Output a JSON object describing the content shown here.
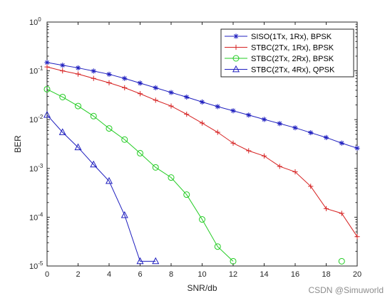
{
  "chart_data": {
    "type": "line",
    "title": "",
    "xlabel": "SNR/db",
    "ylabel": "BER",
    "xlim": [
      0,
      20
    ],
    "ylim": [
      1e-05,
      1
    ],
    "y_scale": "log",
    "grid": false,
    "legend_position": "top-right",
    "x_ticks": [
      0,
      2,
      4,
      6,
      8,
      10,
      12,
      14,
      16,
      18,
      20
    ],
    "y_ticks": [
      {
        "value": 1,
        "base": "10",
        "exp": "0"
      },
      {
        "value": 0.1,
        "base": "10",
        "exp": "-1"
      },
      {
        "value": 0.01,
        "base": "10",
        "exp": "-2"
      },
      {
        "value": 0.001,
        "base": "10",
        "exp": "-3"
      },
      {
        "value": 0.0001,
        "base": "10",
        "exp": "-4"
      },
      {
        "value": 1e-05,
        "base": "10",
        "exp": "-5"
      }
    ],
    "series": [
      {
        "name": "SISO(1Tx, 1Rx), BPSK",
        "color": "#1f1fbf",
        "marker": "asterisk",
        "x": [
          0,
          1,
          2,
          3,
          4,
          5,
          6,
          7,
          8,
          9,
          10,
          11,
          12,
          13,
          14,
          15,
          16,
          17,
          18,
          19,
          20
        ],
        "y": [
          0.148,
          0.13,
          0.115,
          0.099,
          0.085,
          0.07,
          0.056,
          0.045,
          0.036,
          0.029,
          0.023,
          0.0185,
          0.0152,
          0.0124,
          0.0101,
          0.0083,
          0.0068,
          0.0054,
          0.0043,
          0.0033,
          0.0026
        ]
      },
      {
        "name": "STBC(2Tx, 1Rx), BPSK",
        "color": "#d62020",
        "marker": "plus",
        "x": [
          0,
          1,
          2,
          3,
          4,
          5,
          6,
          7,
          8,
          9,
          10,
          11,
          12,
          13,
          14,
          15,
          16,
          17,
          18,
          19,
          20
        ],
        "y": [
          0.12,
          0.1,
          0.086,
          0.07,
          0.057,
          0.045,
          0.034,
          0.025,
          0.019,
          0.0129,
          0.0085,
          0.0055,
          0.0033,
          0.0023,
          0.0018,
          0.0011,
          0.00085,
          0.00043,
          0.00015,
          0.00012,
          4e-05
        ]
      },
      {
        "name": "STBC(2Tx, 2Rx), BPSK",
        "color": "#22cc22",
        "marker": "circle",
        "x": [
          0,
          1,
          2,
          3,
          4,
          5,
          6,
          7,
          8,
          9,
          10,
          11,
          12,
          19
        ],
        "y": [
          0.042,
          0.029,
          0.019,
          0.0118,
          0.0066,
          0.0039,
          0.00205,
          0.00105,
          0.00065,
          0.00029,
          9e-05,
          2.5e-05,
          1.25e-05,
          1.25e-05
        ]
      },
      {
        "name": "STBC(2Tx, 4Rx), QPSK",
        "color": "#1f1fbf",
        "marker": "triangle",
        "x": [
          0,
          1,
          2,
          3,
          4,
          5,
          6,
          7
        ],
        "y": [
          0.0125,
          0.0055,
          0.0027,
          0.0012,
          0.00055,
          0.00011,
          1.25e-05,
          1.25e-05
        ]
      }
    ]
  },
  "watermark": "CSDN @Simuworld"
}
